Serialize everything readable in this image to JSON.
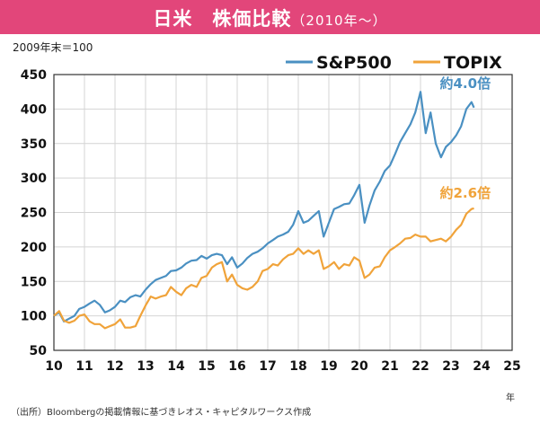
{
  "title": {
    "main": "日米　株価比較",
    "sub": "（2010年〜）"
  },
  "base_label": "2009年末＝100",
  "source_note": "（出所）Bloombergの掲載情報に基づきレオス・キャピタルワークス作成",
  "x_unit": "年",
  "colors": {
    "title_bg": "#e2467a",
    "sp500": "#4a90c2",
    "topix": "#f0a33a"
  },
  "chart_data": {
    "type": "line",
    "title": "日米　株価比較（2010年〜）",
    "ylabel": "2009年末＝100",
    "xlabel": "年",
    "xlim": [
      10,
      25
    ],
    "ylim": [
      50,
      450
    ],
    "x_ticks": [
      10,
      11,
      12,
      13,
      14,
      15,
      16,
      17,
      18,
      19,
      20,
      21,
      22,
      23,
      24,
      25
    ],
    "x_tick_labels": [
      "10",
      "11",
      "12",
      "13",
      "14",
      "15",
      "16",
      "17",
      "18",
      "19",
      "20",
      "21",
      "22",
      "23",
      "24",
      "25"
    ],
    "y_ticks": [
      50,
      100,
      150,
      200,
      250,
      300,
      350,
      400,
      450
    ],
    "grid": true,
    "legend_position": "top-right",
    "series": [
      {
        "name": "S&P500",
        "color": "#4a90c2",
        "points": [
          [
            10.0,
            100
          ],
          [
            10.17,
            105
          ],
          [
            10.33,
            92
          ],
          [
            10.5,
            96
          ],
          [
            10.67,
            100
          ],
          [
            10.83,
            110
          ],
          [
            11.0,
            113
          ],
          [
            11.17,
            118
          ],
          [
            11.33,
            122
          ],
          [
            11.5,
            116
          ],
          [
            11.67,
            105
          ],
          [
            11.83,
            108
          ],
          [
            12.0,
            113
          ],
          [
            12.17,
            122
          ],
          [
            12.33,
            120
          ],
          [
            12.5,
            127
          ],
          [
            12.67,
            130
          ],
          [
            12.83,
            128
          ],
          [
            13.0,
            138
          ],
          [
            13.17,
            146
          ],
          [
            13.33,
            152
          ],
          [
            13.5,
            155
          ],
          [
            13.67,
            158
          ],
          [
            13.83,
            165
          ],
          [
            14.0,
            166
          ],
          [
            14.17,
            170
          ],
          [
            14.33,
            176
          ],
          [
            14.5,
            180
          ],
          [
            14.67,
            181
          ],
          [
            14.83,
            187
          ],
          [
            15.0,
            183
          ],
          [
            15.17,
            188
          ],
          [
            15.33,
            190
          ],
          [
            15.5,
            188
          ],
          [
            15.67,
            175
          ],
          [
            15.83,
            185
          ],
          [
            16.0,
            170
          ],
          [
            16.17,
            176
          ],
          [
            16.33,
            184
          ],
          [
            16.5,
            190
          ],
          [
            16.67,
            193
          ],
          [
            16.83,
            198
          ],
          [
            17.0,
            205
          ],
          [
            17.17,
            210
          ],
          [
            17.33,
            215
          ],
          [
            17.5,
            218
          ],
          [
            17.67,
            222
          ],
          [
            17.83,
            232
          ],
          [
            18.0,
            252
          ],
          [
            18.17,
            235
          ],
          [
            18.33,
            238
          ],
          [
            18.5,
            245
          ],
          [
            18.67,
            252
          ],
          [
            18.83,
            215
          ],
          [
            19.0,
            235
          ],
          [
            19.17,
            255
          ],
          [
            19.33,
            258
          ],
          [
            19.5,
            262
          ],
          [
            19.67,
            263
          ],
          [
            19.83,
            275
          ],
          [
            20.0,
            290
          ],
          [
            20.17,
            235
          ],
          [
            20.33,
            260
          ],
          [
            20.5,
            282
          ],
          [
            20.67,
            295
          ],
          [
            20.83,
            310
          ],
          [
            21.0,
            318
          ],
          [
            21.17,
            335
          ],
          [
            21.33,
            352
          ],
          [
            21.5,
            365
          ],
          [
            21.67,
            378
          ],
          [
            21.83,
            395
          ],
          [
            22.0,
            425
          ],
          [
            22.17,
            365
          ],
          [
            22.33,
            395
          ],
          [
            22.5,
            350
          ],
          [
            22.67,
            330
          ],
          [
            22.83,
            345
          ],
          [
            23.0,
            352
          ],
          [
            23.17,
            362
          ],
          [
            23.33,
            375
          ],
          [
            23.5,
            400
          ],
          [
            23.67,
            410
          ],
          [
            23.75,
            402
          ]
        ],
        "annotation": "約4.0倍"
      },
      {
        "name": "TOPIX",
        "color": "#f0a33a",
        "points": [
          [
            10.0,
            100
          ],
          [
            10.17,
            107
          ],
          [
            10.33,
            93
          ],
          [
            10.5,
            90
          ],
          [
            10.67,
            93
          ],
          [
            10.83,
            100
          ],
          [
            11.0,
            102
          ],
          [
            11.17,
            92
          ],
          [
            11.33,
            88
          ],
          [
            11.5,
            88
          ],
          [
            11.67,
            82
          ],
          [
            11.83,
            85
          ],
          [
            12.0,
            88
          ],
          [
            12.17,
            95
          ],
          [
            12.33,
            83
          ],
          [
            12.5,
            83
          ],
          [
            12.67,
            85
          ],
          [
            12.83,
            100
          ],
          [
            13.0,
            115
          ],
          [
            13.17,
            128
          ],
          [
            13.33,
            125
          ],
          [
            13.5,
            128
          ],
          [
            13.67,
            130
          ],
          [
            13.83,
            142
          ],
          [
            14.0,
            135
          ],
          [
            14.17,
            130
          ],
          [
            14.33,
            140
          ],
          [
            14.5,
            145
          ],
          [
            14.67,
            142
          ],
          [
            14.83,
            155
          ],
          [
            15.0,
            158
          ],
          [
            15.17,
            170
          ],
          [
            15.33,
            175
          ],
          [
            15.5,
            178
          ],
          [
            15.67,
            150
          ],
          [
            15.83,
            160
          ],
          [
            16.0,
            145
          ],
          [
            16.17,
            140
          ],
          [
            16.33,
            138
          ],
          [
            16.5,
            142
          ],
          [
            16.67,
            150
          ],
          [
            16.83,
            165
          ],
          [
            17.0,
            168
          ],
          [
            17.17,
            175
          ],
          [
            17.33,
            173
          ],
          [
            17.5,
            182
          ],
          [
            17.67,
            188
          ],
          [
            17.83,
            190
          ],
          [
            18.0,
            198
          ],
          [
            18.17,
            190
          ],
          [
            18.33,
            195
          ],
          [
            18.5,
            190
          ],
          [
            18.67,
            195
          ],
          [
            18.83,
            168
          ],
          [
            19.0,
            172
          ],
          [
            19.17,
            178
          ],
          [
            19.33,
            168
          ],
          [
            19.5,
            175
          ],
          [
            19.67,
            173
          ],
          [
            19.83,
            185
          ],
          [
            20.0,
            180
          ],
          [
            20.17,
            155
          ],
          [
            20.33,
            160
          ],
          [
            20.5,
            170
          ],
          [
            20.67,
            172
          ],
          [
            20.83,
            185
          ],
          [
            21.0,
            195
          ],
          [
            21.17,
            200
          ],
          [
            21.33,
            205
          ],
          [
            21.5,
            212
          ],
          [
            21.67,
            213
          ],
          [
            21.83,
            218
          ],
          [
            22.0,
            215
          ],
          [
            22.17,
            215
          ],
          [
            22.33,
            208
          ],
          [
            22.5,
            210
          ],
          [
            22.67,
            212
          ],
          [
            22.83,
            208
          ],
          [
            23.0,
            215
          ],
          [
            23.17,
            225
          ],
          [
            23.33,
            232
          ],
          [
            23.5,
            248
          ],
          [
            23.67,
            255
          ],
          [
            23.75,
            256
          ]
        ],
        "annotation": "約2.6倍"
      }
    ]
  }
}
